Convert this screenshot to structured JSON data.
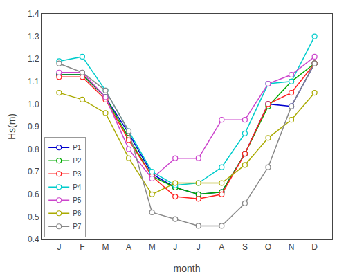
{
  "chart_data": {
    "type": "line",
    "xlabel": "month",
    "ylabel": "Hs(m)",
    "categories": [
      "J",
      "F",
      "M",
      "A",
      "M",
      "J",
      "J",
      "A",
      "S",
      "O",
      "N",
      "D"
    ],
    "series": [
      {
        "name": "P1",
        "color": "#0000cd",
        "marker": "circle",
        "line_style": "solid",
        "values": [
          1.13,
          1.13,
          1.03,
          0.87,
          0.69,
          0.63,
          0.6,
          0.61,
          0.78,
          1.0,
          0.99,
          1.18
        ]
      },
      {
        "name": "P2",
        "color": "#00aa00",
        "marker": "circle",
        "line_style": "solid",
        "values": [
          1.13,
          1.13,
          1.03,
          0.85,
          0.68,
          0.63,
          0.6,
          0.61,
          0.78,
          0.99,
          1.1,
          1.18
        ]
      },
      {
        "name": "P3",
        "color": "#ff2020",
        "marker": "circle",
        "line_style": "solid",
        "values": [
          1.12,
          1.12,
          1.02,
          0.84,
          0.68,
          0.59,
          0.58,
          0.6,
          0.78,
          1.0,
          1.05,
          1.18
        ]
      },
      {
        "name": "P4",
        "color": "#00cccc",
        "marker": "circle",
        "line_style": "solid",
        "values": [
          1.19,
          1.21,
          1.06,
          0.88,
          0.7,
          0.64,
          0.65,
          0.72,
          0.87,
          1.09,
          1.1,
          1.3
        ]
      },
      {
        "name": "P5",
        "color": "#cc44cc",
        "marker": "circle",
        "line_style": "solid",
        "values": [
          1.14,
          1.14,
          1.03,
          0.8,
          0.67,
          0.76,
          0.76,
          0.93,
          0.93,
          1.09,
          1.13,
          1.21
        ]
      },
      {
        "name": "P6",
        "color": "#aaaa00",
        "marker": "circle",
        "line_style": "solid",
        "values": [
          1.05,
          1.02,
          0.96,
          0.76,
          0.6,
          0.65,
          0.65,
          0.65,
          0.73,
          0.85,
          0.93,
          1.05
        ]
      },
      {
        "name": "P7",
        "color": "#888888",
        "marker": "circle",
        "line_style": "solid",
        "values": [
          1.18,
          1.14,
          1.06,
          0.88,
          0.52,
          0.49,
          0.46,
          0.46,
          0.56,
          0.72,
          0.99,
          1.18
        ]
      }
    ],
    "ylim": [
      0.4,
      1.4
    ],
    "yticks": [
      0.4,
      0.5,
      0.6,
      0.7,
      0.8,
      0.9,
      {
        "value": 1.0,
        "label": "1.0"
      },
      1.1,
      1.2,
      1.3,
      1.4
    ],
    "grid": false,
    "legend": "lower left"
  }
}
